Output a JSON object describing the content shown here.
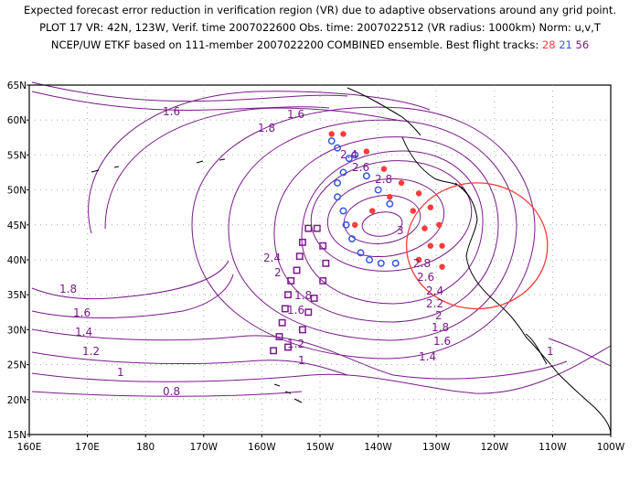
{
  "header": {
    "line1": "Expected forecast error reduction in verification region (VR) due to adaptive observations around any grid point.",
    "line2": "PLOT 17 VR: 42N, 123W, Verif. time 2007022600 Obs. time: 2007022512 (VR radius: 1000km) Norm: u,v,T",
    "line3_prefix": "NCEP/UW ETKF based on 111-member 2007022200 COMBINED ensemble.  Best flight tracks:",
    "tracks": [
      {
        "label": "28",
        "color": "#ff3a3a"
      },
      {
        "label": "21",
        "color": "#3355ee"
      },
      {
        "label": "56",
        "color": "#7a1a8a"
      }
    ]
  },
  "map": {
    "lon_range": [
      160,
      260
    ],
    "lat_range": [
      15,
      65
    ],
    "lat_ticks": [
      "15N",
      "20N",
      "25N",
      "30N",
      "35N",
      "40N",
      "45N",
      "50N",
      "55N",
      "60N",
      "65N"
    ],
    "lon_ticks": [
      "160E",
      "170E",
      "180",
      "170W",
      "160W",
      "150W",
      "140W",
      "130W",
      "120W",
      "110W",
      "100W"
    ],
    "contour_color": "#7a1a8a",
    "contour_labels": [
      "1.6",
      "1.6",
      "1.8",
      "2.4",
      "2.6",
      "2.8",
      "3",
      "2.8",
      "2.6",
      "2.4",
      "2.2",
      "2",
      "1.8",
      "1.6",
      "1.4",
      "1",
      "2.4",
      "2",
      "1.8",
      "1.6",
      "1.2",
      "1",
      "1.8",
      "1.6",
      "1.4",
      "1.2",
      "1",
      "0.8",
      "1"
    ],
    "verification_circle": {
      "lat": 42,
      "lon": 237,
      "radius_km": 1000,
      "color": "#ff3a3a"
    },
    "track_red_points": [
      [
        58,
        -148
      ],
      [
        58,
        -146
      ],
      [
        55.5,
        -142
      ],
      [
        53,
        -139
      ],
      [
        51,
        -136
      ],
      [
        49.5,
        -133
      ],
      [
        47.5,
        -131
      ],
      [
        45,
        -129.5
      ],
      [
        42,
        -129
      ],
      [
        39,
        -129
      ],
      [
        45,
        -144
      ],
      [
        47,
        -141
      ],
      [
        49,
        -138
      ],
      [
        47,
        -134
      ],
      [
        44.5,
        -132
      ],
      [
        42,
        -131
      ],
      [
        40,
        -133
      ]
    ],
    "track_blue_points": [
      [
        57,
        -148
      ],
      [
        56,
        -147
      ],
      [
        54.5,
        -145
      ],
      [
        52.5,
        -146
      ],
      [
        51,
        -147
      ],
      [
        49,
        -147
      ],
      [
        47,
        -146
      ],
      [
        45,
        -145.5
      ],
      [
        43,
        -144.5
      ],
      [
        41,
        -143
      ],
      [
        40,
        -141.5
      ],
      [
        39.5,
        -139.5
      ],
      [
        39.5,
        -137
      ],
      [
        55,
        -144
      ],
      [
        52,
        -142
      ],
      [
        50,
        -140
      ],
      [
        48,
        -138
      ]
    ],
    "track_purple_points": [
      [
        44.5,
        -152
      ],
      [
        42.5,
        -153
      ],
      [
        40.5,
        -153.5
      ],
      [
        38.5,
        -154
      ],
      [
        37,
        -155
      ],
      [
        35,
        -155.5
      ],
      [
        33,
        -156
      ],
      [
        31,
        -156.5
      ],
      [
        29,
        -157
      ],
      [
        27,
        -158
      ],
      [
        44.5,
        -150.5
      ],
      [
        42,
        -149.5
      ],
      [
        39.5,
        -149
      ],
      [
        37,
        -149.5
      ],
      [
        34.5,
        -151
      ],
      [
        32.5,
        -152
      ],
      [
        30,
        -153
      ],
      [
        27.5,
        -155.5
      ]
    ]
  }
}
